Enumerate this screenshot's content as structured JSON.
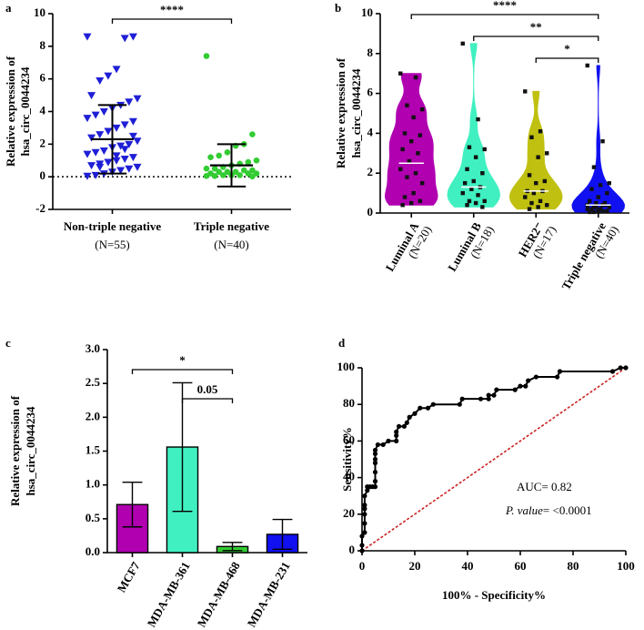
{
  "chart_data": [
    {
      "panel": "a",
      "type": "dot",
      "ylabel": [
        "Relative expression of",
        "hsa_circ_0044234"
      ],
      "categories": [
        "Non-triple negative",
        "Triple negative"
      ],
      "category_notes": [
        "(N=55)",
        "(N=40)"
      ],
      "groups": [
        {
          "color": "#1f1fd6",
          "marker": "triangle",
          "mean": 2.3,
          "sd": 2.1,
          "values": [
            8.6,
            8.6,
            8.5,
            6.6,
            6.2,
            5.9,
            5.0,
            4.8,
            4.6,
            4.4,
            4.2,
            4.0,
            3.8,
            3.6,
            3.4,
            3.2,
            3.0,
            2.8,
            2.6,
            2.4,
            2.2,
            2.0,
            1.9,
            1.8,
            1.6,
            1.5,
            1.4,
            1.2,
            1.1,
            1.0,
            0.9,
            0.8,
            0.7,
            0.6,
            0.5,
            0.4,
            0.3,
            0.2,
            0.1,
            0.05,
            2.5,
            1.7,
            1.3,
            0.9,
            0.6
          ]
        },
        {
          "color": "#33cc33",
          "marker": "circle",
          "mean": 0.7,
          "sd": 1.3,
          "values": [
            7.4,
            2.6,
            2.0,
            1.9,
            1.5,
            1.3,
            1.2,
            1.0,
            0.9,
            0.8,
            0.7,
            0.6,
            0.5,
            0.5,
            0.4,
            0.4,
            0.3,
            0.3,
            0.3,
            0.2,
            0.2,
            0.2,
            0.1,
            0.1,
            0.1,
            0.05,
            0.05,
            0.02
          ]
        }
      ],
      "ylim": [
        -2,
        10
      ],
      "yticks": [
        -2,
        0,
        2,
        4,
        6,
        8,
        10
      ],
      "reference_line": 0,
      "comparisons": [
        {
          "pair": [
            0,
            1
          ],
          "label": "****"
        }
      ]
    },
    {
      "panel": "b",
      "type": "violin",
      "ylabel": [
        "Relative expression of",
        "hsa_circ_0044234"
      ],
      "categories": [
        "Luminal A",
        "Luminal B",
        "HER2⁻",
        "Triple negative"
      ],
      "category_notes": [
        "(N=20)",
        "(N=18)",
        "(N=17)",
        "(N=40)"
      ],
      "groups": [
        {
          "color": "#b000b0",
          "median": 2.5,
          "values": [
            7.0,
            6.8,
            5.4,
            5.2,
            4.8,
            4.0,
            3.9,
            3.6,
            3.2,
            3.0,
            2.6,
            2.2,
            2.0,
            1.8,
            1.5,
            1.0,
            0.8,
            0.6,
            0.5,
            0.4
          ]
        },
        {
          "color": "#40f0c0",
          "median": 1.3,
          "values": [
            8.5,
            4.7,
            3.3,
            3.2,
            2.8,
            2.2,
            2.0,
            1.6,
            1.5,
            1.3,
            1.2,
            1.0,
            0.9,
            0.6,
            0.6,
            0.5,
            0.4,
            0.3
          ]
        },
        {
          "color": "#c0c010",
          "median": 1.1,
          "values": [
            6.1,
            4.1,
            3.8,
            3.0,
            2.8,
            1.9,
            1.6,
            1.5,
            1.1,
            1.1,
            1.0,
            0.8,
            0.6,
            0.5,
            0.4,
            0.3,
            0.2
          ]
        },
        {
          "color": "#1010f0",
          "median": 0.4,
          "values": [
            7.4,
            3.6,
            2.3,
            1.5,
            1.4,
            1.2,
            1.0,
            0.8,
            0.6,
            0.5,
            0.5,
            0.4,
            0.4,
            0.3,
            0.3,
            0.2,
            0.2,
            0.1,
            0.1,
            0.05,
            0.4,
            0.3,
            0.2,
            0.1,
            0.05
          ]
        }
      ],
      "ylim": [
        0,
        10
      ],
      "yticks": [
        0,
        2,
        4,
        6,
        8,
        10
      ],
      "comparisons": [
        {
          "pair": [
            0,
            3
          ],
          "label": "****"
        },
        {
          "pair": [
            1,
            3
          ],
          "label": "**"
        },
        {
          "pair": [
            2,
            3
          ],
          "label": "*"
        }
      ]
    },
    {
      "panel": "c",
      "type": "bar",
      "ylabel": [
        "Relative expression of",
        "hsa_circ_0044234"
      ],
      "categories": [
        "MCF7",
        "MDA-MB-361",
        "MDA-MB-468",
        "MDA-MB-231"
      ],
      "values": [
        0.71,
        1.56,
        0.09,
        0.27
      ],
      "errors": [
        0.33,
        0.95,
        0.06,
        0.22
      ],
      "colors": [
        "#b000b0",
        "#40f0c0",
        "#33cc33",
        "#1010f0"
      ],
      "ylim": [
        0,
        3
      ],
      "yticks": [
        {
          "value": 0,
          "label": "0.0"
        },
        0.5,
        {
          "value": 1,
          "label": "1.0"
        },
        1.5,
        {
          "value": 2,
          "label": "2.0"
        },
        2.5,
        {
          "value": 3,
          "label": "3.0"
        }
      ],
      "comparisons": [
        {
          "pair": [
            0,
            2
          ],
          "label": "*"
        },
        {
          "pair": [
            1,
            2
          ],
          "label": "0.05"
        }
      ]
    },
    {
      "panel": "d",
      "type": "line",
      "xlabel": "100% - Specificity%",
      "ylabel": [
        "Sensitivity%"
      ],
      "x": [
        0,
        0,
        0,
        1,
        1,
        1,
        1,
        1,
        1,
        2,
        2,
        3,
        4,
        5,
        5,
        5,
        5,
        5,
        5,
        5,
        6,
        8,
        10,
        13,
        13,
        13,
        14,
        16,
        17,
        18,
        20,
        22,
        25,
        27,
        37,
        38,
        45,
        48,
        48,
        50,
        51,
        58,
        60,
        62,
        63,
        66,
        74,
        75,
        95,
        98,
        100
      ],
      "y": [
        0,
        3,
        8,
        10,
        15,
        20,
        23,
        25,
        30,
        33,
        35,
        35,
        35,
        35,
        38,
        43,
        48,
        50,
        53,
        55,
        58,
        58,
        60,
        60,
        63,
        65,
        68,
        68,
        70,
        73,
        75,
        78,
        78,
        80,
        80,
        83,
        83,
        83,
        85,
        85,
        88,
        88,
        90,
        90,
        93,
        95,
        95,
        98,
        98,
        100,
        100
      ],
      "color": "#000000",
      "reference_color": "#cc2222",
      "xlim": [
        0,
        100
      ],
      "ylim": [
        0,
        100
      ],
      "xticks": [
        0,
        20,
        40,
        60,
        80,
        100
      ],
      "yticks": [
        0,
        20,
        40,
        60,
        80,
        100
      ],
      "annotations": {
        "auc": "AUC= 0.82",
        "p_label": "P. value",
        "p_text": "= <0.0001"
      }
    }
  ]
}
